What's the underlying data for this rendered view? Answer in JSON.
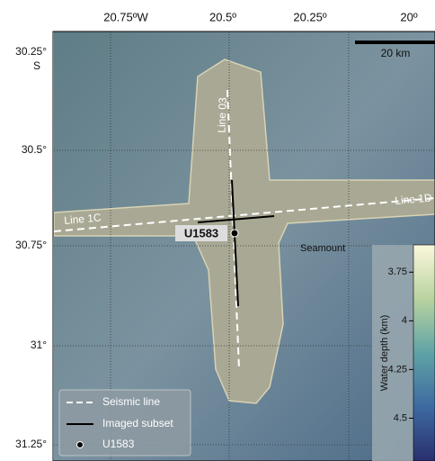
{
  "map": {
    "lon_labels": [
      "20.75ºW",
      "20.5º",
      "20.25º",
      "20º"
    ],
    "lat_labels": [
      "30.25°",
      "30.5°",
      "30.75°",
      "31°",
      "31.25°"
    ],
    "lat_hemisphere": "S",
    "scale_bar": "20 km",
    "annotations": {
      "line_03": "Line 03",
      "line_1c": "Line 1C",
      "line_1d": "Line 1D",
      "site": "U1583",
      "seamount": "Seamount"
    },
    "legend": [
      "Seismic line",
      "Imaged subset",
      "U1583"
    ],
    "colorbar": {
      "label": "Water depth (km)",
      "lim": [
        3.61,
        4.72
      ],
      "ticks": [
        3.75,
        4,
        4.25,
        4.5
      ]
    }
  }
}
